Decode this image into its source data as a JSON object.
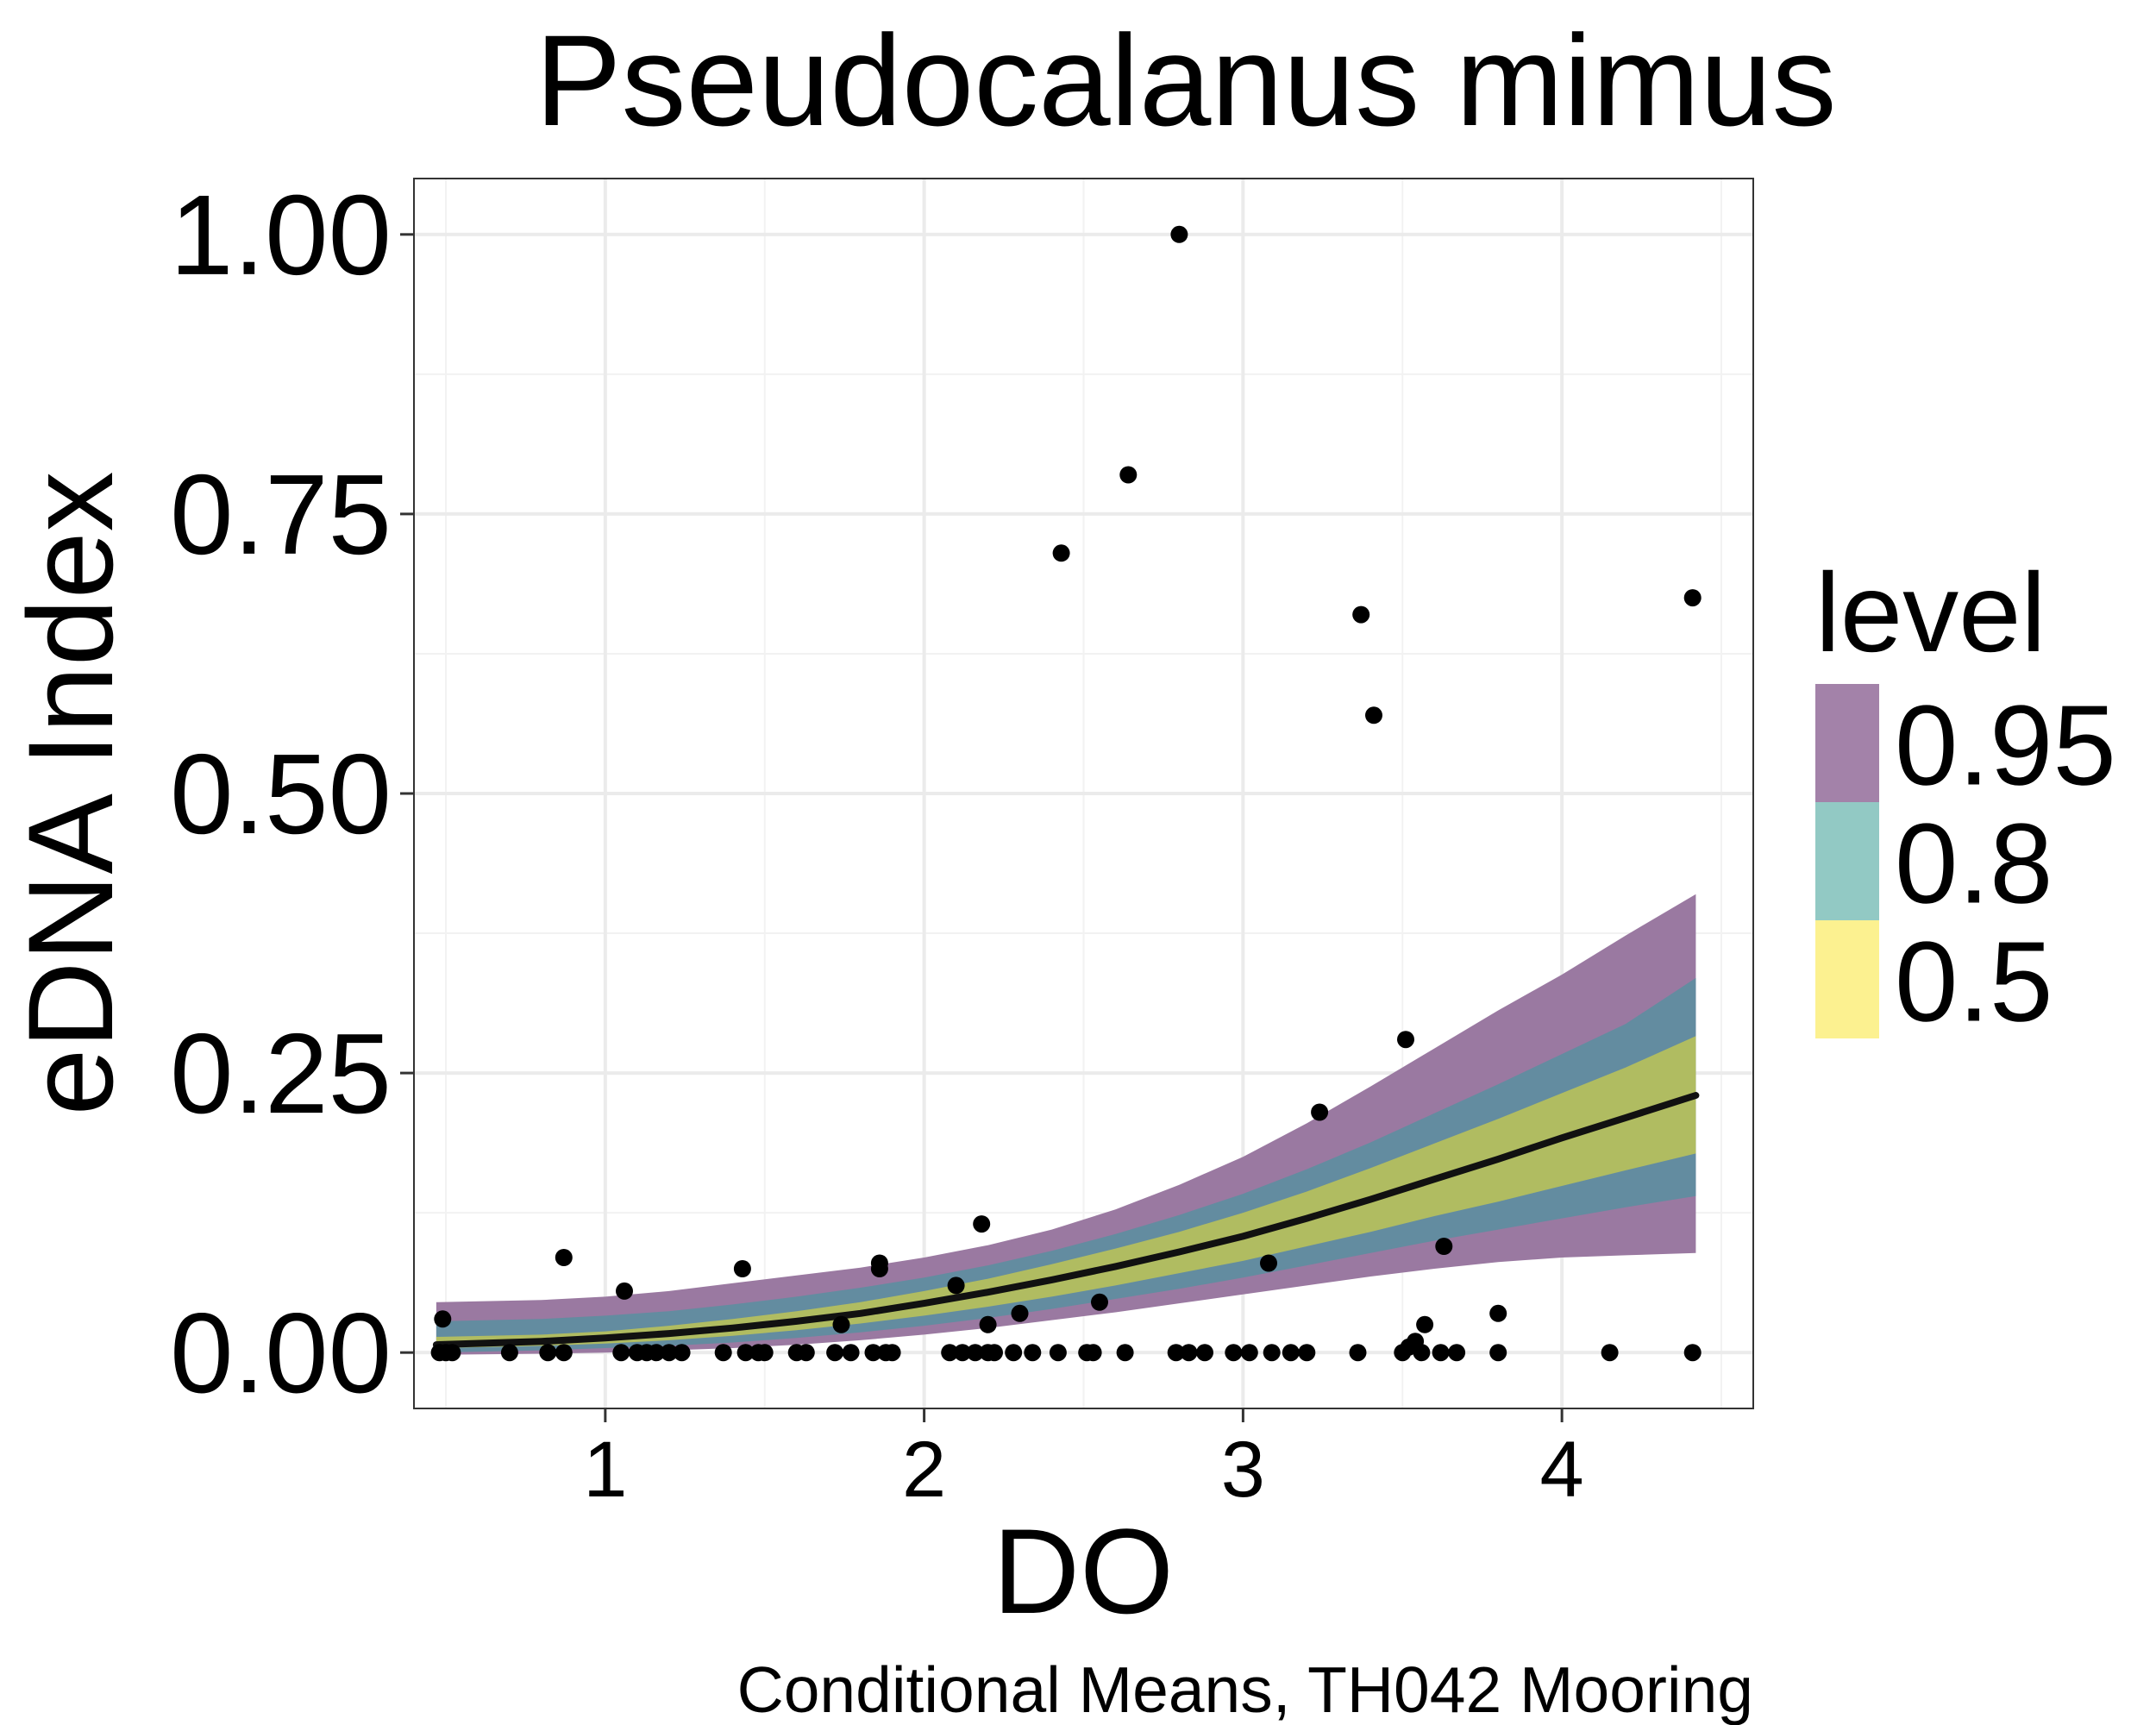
{
  "chart_data": {
    "type": "scatter",
    "title": "Pseudocalanus mimus",
    "xlabel": "DO",
    "ylabel": "eDNA Index",
    "caption": "Conditional Means, TH042 Mooring",
    "xlim": [
      0.4,
      4.6
    ],
    "ylim": [
      -0.05,
      1.05
    ],
    "x_ticks": [
      1,
      2,
      3,
      4
    ],
    "x_tick_labels": [
      "1",
      "2",
      "3",
      "4"
    ],
    "y_ticks": [
      0,
      0.25,
      0.5,
      0.75,
      1.0
    ],
    "y_tick_labels": [
      "0.00",
      "0.25",
      "0.50",
      "0.75",
      "1.00"
    ],
    "grid": true,
    "legend": {
      "title": "level",
      "position": "right",
      "entries": [
        {
          "label": "0.95",
          "color": "#a382a9"
        },
        {
          "label": "0.8",
          "color": "#92c9c4"
        },
        {
          "label": "0.5",
          "color": "#fcf190"
        }
      ]
    },
    "fit_line": {
      "color": "#111111",
      "x": [
        0.47,
        0.8,
        1.0,
        1.2,
        1.4,
        1.6,
        1.8,
        2.0,
        2.2,
        2.4,
        2.6,
        2.8,
        3.0,
        3.2,
        3.4,
        3.6,
        3.8,
        4.0,
        4.2,
        4.42
      ],
      "y": [
        0.007,
        0.01,
        0.013,
        0.017,
        0.022,
        0.028,
        0.035,
        0.044,
        0.054,
        0.065,
        0.077,
        0.09,
        0.104,
        0.12,
        0.137,
        0.155,
        0.173,
        0.192,
        0.21,
        0.23
      ]
    },
    "ribbons": [
      {
        "level": "0.95",
        "color": "#9a79a1",
        "x": [
          0.47,
          0.8,
          1.0,
          1.2,
          1.4,
          1.6,
          1.8,
          2.0,
          2.2,
          2.4,
          2.6,
          2.8,
          3.0,
          3.2,
          3.4,
          3.6,
          3.8,
          4.0,
          4.2,
          4.42
        ],
        "lower": [
          -0.002,
          -0.001,
          0.0,
          0.002,
          0.004,
          0.007,
          0.011,
          0.016,
          0.022,
          0.029,
          0.036,
          0.044,
          0.052,
          0.06,
          0.068,
          0.075,
          0.081,
          0.085,
          0.087,
          0.089
        ],
        "upper": [
          0.045,
          0.047,
          0.05,
          0.055,
          0.062,
          0.069,
          0.076,
          0.085,
          0.096,
          0.11,
          0.128,
          0.15,
          0.175,
          0.205,
          0.238,
          0.272,
          0.306,
          0.338,
          0.373,
          0.41
        ]
      },
      {
        "level": "0.8",
        "color": "#638ca0",
        "x": [
          0.47,
          0.8,
          1.0,
          1.2,
          1.4,
          1.6,
          1.8,
          2.0,
          2.2,
          2.4,
          2.6,
          2.8,
          3.0,
          3.2,
          3.4,
          3.6,
          3.8,
          4.0,
          4.2,
          4.42
        ],
        "lower": [
          0.0,
          0.002,
          0.004,
          0.006,
          0.009,
          0.013,
          0.018,
          0.024,
          0.031,
          0.039,
          0.048,
          0.057,
          0.067,
          0.078,
          0.089,
          0.1,
          0.11,
          0.12,
          0.13,
          0.14
        ],
        "upper": [
          0.028,
          0.03,
          0.033,
          0.037,
          0.043,
          0.05,
          0.058,
          0.067,
          0.078,
          0.091,
          0.106,
          0.123,
          0.142,
          0.164,
          0.188,
          0.214,
          0.24,
          0.267,
          0.294,
          0.335
        ]
      },
      {
        "level": "0.5",
        "color": "#b0bc61",
        "x": [
          0.47,
          0.8,
          1.0,
          1.2,
          1.4,
          1.6,
          1.8,
          2.0,
          2.2,
          2.4,
          2.6,
          2.8,
          3.0,
          3.2,
          3.4,
          3.6,
          3.8,
          4.0,
          4.2,
          4.42
        ],
        "lower": [
          0.004,
          0.006,
          0.008,
          0.011,
          0.015,
          0.02,
          0.026,
          0.033,
          0.041,
          0.05,
          0.06,
          0.071,
          0.082,
          0.095,
          0.108,
          0.122,
          0.135,
          0.149,
          0.163,
          0.178
        ],
        "upper": [
          0.014,
          0.016,
          0.019,
          0.024,
          0.03,
          0.037,
          0.045,
          0.055,
          0.066,
          0.079,
          0.093,
          0.108,
          0.125,
          0.144,
          0.165,
          0.187,
          0.209,
          0.232,
          0.255,
          0.283
        ]
      }
    ],
    "points": {
      "color": "#000000",
      "x": [
        0.48,
        0.49,
        0.5,
        0.52,
        0.7,
        0.82,
        0.87,
        0.87,
        1.05,
        1.06,
        1.1,
        1.13,
        1.16,
        1.2,
        1.24,
        1.37,
        1.43,
        1.44,
        1.48,
        1.5,
        1.6,
        1.63,
        1.72,
        1.74,
        1.77,
        1.84,
        1.86,
        1.86,
        1.88,
        1.9,
        2.08,
        2.1,
        2.12,
        2.16,
        2.18,
        2.2,
        2.2,
        2.22,
        2.28,
        2.3,
        2.34,
        2.42,
        2.43,
        2.51,
        2.53,
        2.55,
        2.63,
        2.64,
        2.79,
        2.8,
        2.83,
        2.88,
        2.97,
        3.02,
        3.08,
        3.09,
        3.15,
        3.2,
        3.24,
        3.36,
        3.37,
        3.41,
        3.5,
        3.51,
        3.52,
        3.54,
        3.56,
        3.57,
        3.62,
        3.63,
        3.67,
        3.8,
        3.8,
        4.15,
        4.41,
        4.41
      ],
      "y": [
        0.0,
        0.03,
        0.0,
        0.0,
        0.0,
        0.0,
        0.085,
        0.0,
        0.0,
        0.055,
        0.0,
        0.0,
        0.0,
        0.0,
        0.0,
        0.0,
        0.075,
        0.0,
        0.0,
        0.0,
        0.0,
        0.0,
        0.0,
        0.025,
        0.0,
        0.0,
        0.08,
        0.075,
        0.0,
        0.0,
        0.0,
        0.06,
        0.0,
        0.0,
        0.115,
        0.0,
        0.025,
        0.0,
        0.0,
        0.035,
        0.0,
        0.0,
        0.715,
        0.0,
        0.0,
        0.045,
        0.0,
        0.785,
        0.0,
        1.0,
        0.0,
        0.0,
        0.0,
        0.0,
        0.08,
        0.0,
        0.0,
        0.0,
        0.215,
        0.0,
        0.66,
        0.57,
        0.0,
        0.28,
        0.005,
        0.01,
        0.0,
        0.025,
        0.0,
        0.095,
        0.0,
        0.035,
        0.0,
        0.0,
        0.675,
        0.0
      ]
    }
  }
}
